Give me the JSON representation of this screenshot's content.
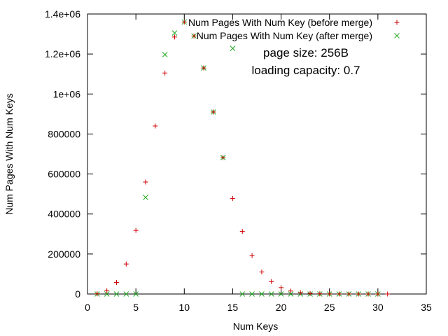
{
  "chart_data": {
    "type": "scatter",
    "title": "",
    "xlabel": "Num Keys",
    "ylabel": "Num Pages With Num Keys",
    "xlim": [
      0,
      35
    ],
    "ylim": [
      0,
      1400000
    ],
    "grid": false,
    "legend_position": "top-right",
    "x_ticks": [
      0,
      5,
      10,
      15,
      20,
      25,
      30,
      35
    ],
    "y_ticks": [
      0,
      200000,
      400000,
      600000,
      800000,
      1000000,
      1200000,
      1400000
    ],
    "y_tick_labels": [
      "0",
      "200000",
      "400000",
      "600000",
      "800000",
      "1e+06",
      "1.2e+06",
      "1.4e+06"
    ],
    "annotations": [
      "page size: 256B",
      "loading capacity: 0.7"
    ],
    "series": [
      {
        "name": "Num Pages With Num Key (before merge)",
        "marker": "plus",
        "color": "#cc0000",
        "x": [
          1,
          2,
          3,
          4,
          5,
          6,
          7,
          8,
          9,
          10,
          11,
          12,
          13,
          14,
          15,
          16,
          17,
          18,
          19,
          20,
          21,
          22,
          23,
          24,
          25,
          26,
          27,
          28,
          29,
          30,
          31
        ],
        "y": [
          1000,
          16000,
          58000,
          150000,
          318000,
          560000,
          840000,
          1105000,
          1285000,
          1360000,
          1290000,
          1130000,
          910000,
          682000,
          478000,
          313000,
          192000,
          110000,
          62000,
          32000,
          15000,
          7000,
          3000,
          1000,
          500,
          200,
          100,
          50,
          20,
          10,
          5
        ]
      },
      {
        "name": "Num Pages With Num Key (after merge)",
        "marker": "cross",
        "color": "#22aa22",
        "x": [
          1,
          2,
          3,
          4,
          5,
          6,
          8,
          9,
          10,
          11,
          12,
          13,
          14,
          15,
          16,
          17,
          18,
          19,
          20,
          21,
          22,
          23,
          24,
          25,
          26,
          27,
          28,
          29,
          30
        ],
        "y": [
          0,
          0,
          0,
          0,
          0,
          483000,
          1197000,
          1305000,
          1360000,
          1290000,
          1130000,
          910000,
          682000,
          1228000,
          0,
          0,
          0,
          0,
          0,
          0,
          0,
          0,
          0,
          0,
          0,
          0,
          0,
          0,
          0
        ]
      }
    ]
  }
}
